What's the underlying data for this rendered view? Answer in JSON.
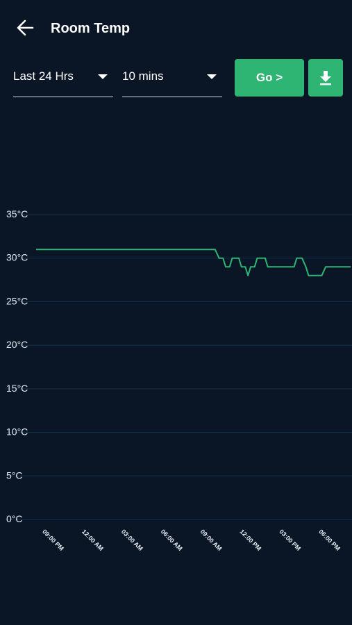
{
  "header": {
    "title": "Room Temp"
  },
  "controls": {
    "range": "Last 24 Hrs",
    "interval": "10 mins",
    "go": "Go >"
  },
  "chart_data": {
    "type": "line",
    "color": "#2fb573",
    "grid": true,
    "x": [
      19.6,
      33.0,
      33.2,
      33.5,
      33.8,
      34.0,
      34.3,
      34.5,
      35.0,
      35.2,
      35.5,
      35.7,
      35.9,
      36.2,
      36.4,
      37.0,
      37.2,
      39.2,
      39.4,
      39.8,
      40.1,
      40.3,
      41.3,
      41.6,
      43.5
    ],
    "values": [
      31,
      31,
      31,
      30,
      30,
      29,
      29,
      30,
      30,
      29,
      29,
      28,
      29,
      29,
      30,
      30,
      29,
      29,
      30,
      30,
      29,
      28,
      28,
      29,
      29
    ],
    "xlim": [
      19.6,
      43.6
    ],
    "xticks": [
      {
        "value": 21,
        "label": "09:00 PM"
      },
      {
        "value": 24,
        "label": "12:00 AM"
      },
      {
        "value": 27,
        "label": "03:00 AM"
      },
      {
        "value": 30,
        "label": "06:00 AM"
      },
      {
        "value": 33,
        "label": "09:00 AM"
      },
      {
        "value": 36,
        "label": "12:00 PM"
      },
      {
        "value": 39,
        "label": "03:00 PM"
      },
      {
        "value": 42,
        "label": "06:00 PM"
      }
    ],
    "ylim": [
      0,
      35
    ],
    "yticks": [
      {
        "value": 0,
        "label": "0°C"
      },
      {
        "value": 5,
        "label": "5°C"
      },
      {
        "value": 10,
        "label": "10°C"
      },
      {
        "value": 15,
        "label": "15°C"
      },
      {
        "value": 20,
        "label": "20°C"
      },
      {
        "value": 25,
        "label": "25°C"
      },
      {
        "value": 30,
        "label": "30°C"
      },
      {
        "value": 35,
        "label": "35°C"
      }
    ]
  }
}
